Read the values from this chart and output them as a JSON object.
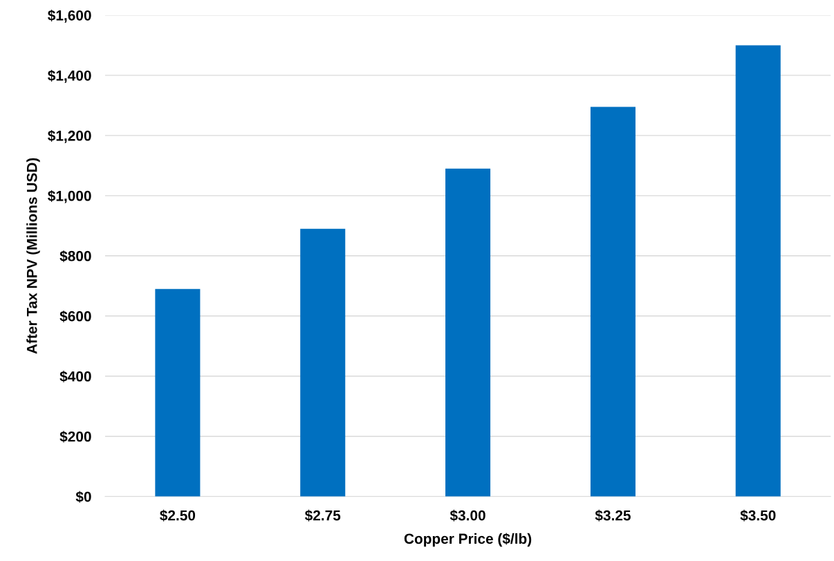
{
  "chart_data": {
    "type": "bar",
    "xlabel": "Copper Price ($/lb)",
    "ylabel": "After Tax NPV (Millions USD)",
    "categories": [
      "$2.50",
      "$2.75",
      "$3.00",
      "$3.25",
      "$3.50"
    ],
    "values": [
      690,
      890,
      1090,
      1295,
      1500
    ],
    "color": "#0070c0",
    "ylim": [
      0,
      1600
    ],
    "yticks": [
      {
        "value": 0,
        "label": "$0"
      },
      {
        "value": 200,
        "label": "$200"
      },
      {
        "value": 400,
        "label": "$400"
      },
      {
        "value": 600,
        "label": "$600"
      },
      {
        "value": 800,
        "label": "$800"
      },
      {
        "value": 1000,
        "label": "$1,000"
      },
      {
        "value": 1200,
        "label": "$1,200"
      },
      {
        "value": 1400,
        "label": "$1,400"
      },
      {
        "value": 1600,
        "label": "$1,600"
      }
    ],
    "grid": "y"
  }
}
